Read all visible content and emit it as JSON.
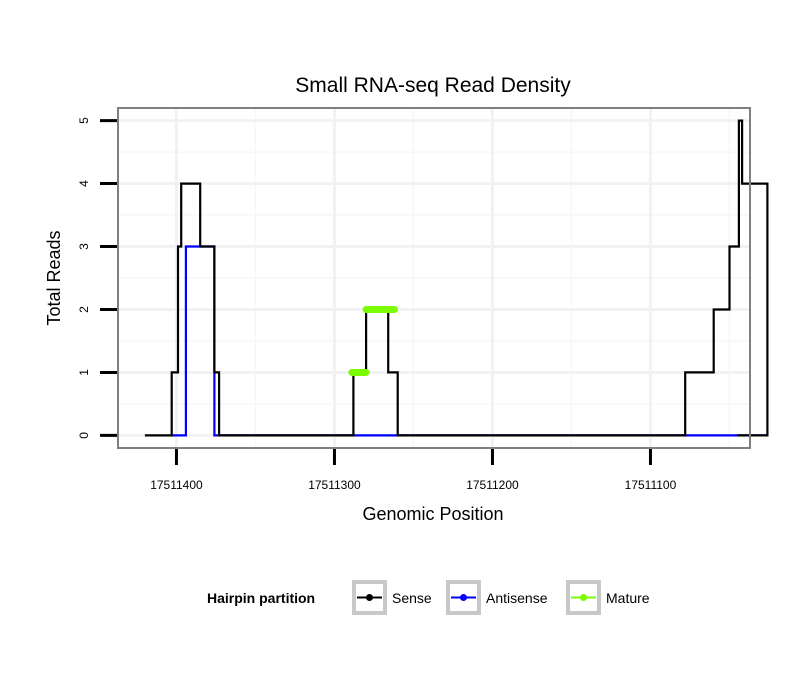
{
  "chart_data": {
    "type": "line",
    "title": "Small RNA-seq Read Density",
    "xlabel": "Genomic Position",
    "ylabel": "Total Reads",
    "x_reversed": true,
    "xlim": [
      17511437,
      17511037
    ],
    "ylim": [
      -0.2,
      5.2
    ],
    "x_ticks": [
      17511400,
      17511300,
      17511200,
      17511100
    ],
    "x_tick_labels": [
      "17511400",
      "17511300",
      "17511200",
      "17511100"
    ],
    "y_ticks": [
      0,
      1,
      2,
      3,
      4,
      5
    ],
    "y_tick_labels": [
      "0",
      "1",
      "2",
      "3",
      "4",
      "5"
    ],
    "grid": true,
    "legend": {
      "title": "Hairpin partition",
      "position": "bottom",
      "entries": [
        {
          "name": "Sense",
          "color": "#000000"
        },
        {
          "name": "Antisense",
          "color": "#0000ff"
        },
        {
          "name": "Mature",
          "color": "#7cfc00"
        }
      ]
    },
    "series": [
      {
        "name": "Sense",
        "color": "#000000",
        "step": true,
        "points": [
          [
            17511420,
            0
          ],
          [
            17511403,
            0
          ],
          [
            17511403,
            1
          ],
          [
            17511399,
            1
          ],
          [
            17511399,
            3
          ],
          [
            17511397,
            3
          ],
          [
            17511397,
            4
          ],
          [
            17511385,
            4
          ],
          [
            17511385,
            3
          ],
          [
            17511376,
            3
          ],
          [
            17511376,
            1
          ],
          [
            17511373,
            1
          ],
          [
            17511373,
            0
          ],
          [
            17511288,
            0
          ],
          [
            17511288,
            1
          ],
          [
            17511280,
            1
          ],
          [
            17511280,
            2
          ],
          [
            17511266,
            2
          ],
          [
            17511266,
            1
          ],
          [
            17511260,
            1
          ],
          [
            17511260,
            0
          ],
          [
            17511078,
            0
          ],
          [
            17511078,
            1
          ],
          [
            17511060,
            1
          ],
          [
            17511060,
            2
          ],
          [
            17511050,
            2
          ],
          [
            17511050,
            3
          ],
          [
            17511044,
            3
          ],
          [
            17511044,
            5
          ],
          [
            17511042,
            5
          ],
          [
            17511042,
            4
          ],
          [
            17511026,
            4
          ],
          [
            17511026,
            0
          ],
          [
            17511045,
            0
          ]
        ]
      },
      {
        "name": "Antisense",
        "color": "#0000ff",
        "step": true,
        "points": [
          [
            17511403,
            0
          ],
          [
            17511394,
            0
          ],
          [
            17511394,
            3
          ],
          [
            17511376,
            3
          ],
          [
            17511376,
            0
          ],
          [
            17511026,
            0
          ]
        ]
      },
      {
        "name": "Mature",
        "color": "#7cfc00",
        "step": true,
        "segments": [
          {
            "x": [
              17511289,
              17511280
            ],
            "y": 1
          },
          {
            "x": [
              17511280,
              17511262
            ],
            "y": 2
          }
        ]
      }
    ]
  }
}
